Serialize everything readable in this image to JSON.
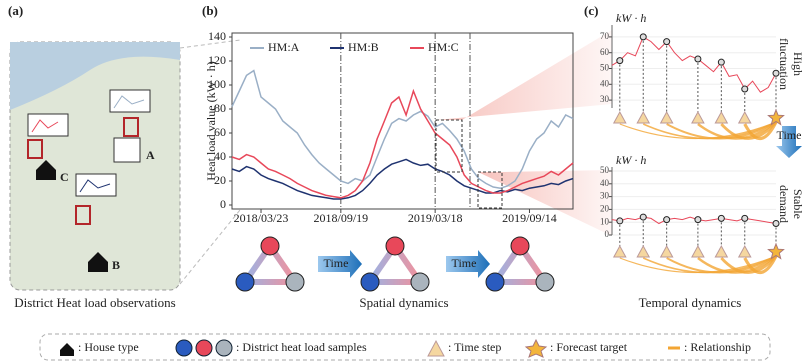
{
  "panels": {
    "a": "(a)",
    "b": "(b)",
    "c": "(c)"
  },
  "captions": {
    "a": "District Heat load observations",
    "b": "Spatial dynamics",
    "c": "Temporal dynamics"
  },
  "map_labels": [
    "A",
    "B",
    "C"
  ],
  "time_label": "Time",
  "side_labels": {
    "top": [
      "High",
      "fluctuation"
    ],
    "bottom": [
      "Stable",
      "demand"
    ]
  },
  "legend": [
    ": House type",
    ": District heat load samples",
    ": Time step",
    ": Forecast target",
    ": Relationship"
  ],
  "chart_data": [
    {
      "type": "line",
      "y_label": "Heat load value (kW · h)",
      "categories": [
        null,
        null,
        null,
        null,
        "2018/03/23",
        null,
        null,
        null,
        null,
        null,
        null,
        null,
        null,
        null,
        null,
        "2018/09/19",
        null,
        null,
        null,
        null,
        null,
        null,
        null,
        null,
        null,
        null,
        null,
        null,
        "2019/03/18",
        null,
        null,
        null,
        null,
        null,
        null,
        null,
        null,
        null,
        null,
        null,
        null,
        "2019/09/14",
        null,
        null,
        null,
        null,
        null,
        null
      ],
      "series": [
        {
          "name": "HM:A",
          "color": "#9aafc6",
          "values": [
            82,
            95,
            108,
            112,
            90,
            85,
            80,
            70,
            65,
            60,
            50,
            42,
            35,
            30,
            25,
            20,
            18,
            22,
            20,
            25,
            40,
            55,
            68,
            72,
            70,
            75,
            78,
            74,
            65,
            68,
            62,
            55,
            45,
            30,
            22,
            18,
            15,
            14,
            16,
            20,
            30,
            45,
            55,
            60,
            70,
            65,
            75,
            72
          ]
        },
        {
          "name": "HM:B",
          "color": "#1f3370",
          "values": [
            30,
            28,
            32,
            30,
            25,
            22,
            20,
            18,
            15,
            12,
            10,
            8,
            7,
            6,
            5,
            5,
            6,
            8,
            12,
            18,
            25,
            30,
            34,
            36,
            38,
            35,
            33,
            34,
            30,
            28,
            25,
            20,
            16,
            14,
            12,
            10,
            10,
            12,
            11,
            13,
            12,
            14,
            15,
            16,
            18,
            17,
            20,
            22
          ]
        },
        {
          "name": "HM:C",
          "color": "#e8485a",
          "values": [
            40,
            38,
            42,
            40,
            35,
            30,
            28,
            25,
            22,
            18,
            15,
            12,
            10,
            8,
            7,
            6,
            8,
            12,
            20,
            35,
            55,
            70,
            85,
            90,
            75,
            95,
            80,
            70,
            60,
            55,
            50,
            40,
            25,
            18,
            15,
            12,
            10,
            10,
            12,
            15,
            18,
            20,
            22,
            24,
            28,
            25,
            30,
            35
          ]
        }
      ],
      "ylim": [
        0,
        140
      ],
      "yticks": [
        0,
        20,
        40,
        60,
        80,
        100,
        120,
        140
      ]
    },
    {
      "type": "line",
      "y_label": "kW · h",
      "color": "#e8485a",
      "values": [
        52,
        55,
        60,
        58,
        70,
        67,
        62,
        67,
        60,
        55,
        58,
        56,
        52,
        48,
        54,
        45,
        46,
        37,
        42,
        35,
        38,
        47
      ],
      "marker_indices": [
        1,
        4,
        7,
        11,
        14,
        17,
        21
      ],
      "ylim": [
        25,
        75
      ],
      "yticks": [
        30,
        40,
        50,
        60,
        70
      ]
    },
    {
      "type": "line",
      "y_label": "kW · h",
      "color": "#e8485a",
      "values": [
        12,
        11,
        13,
        12,
        14,
        13,
        9,
        12,
        13,
        12,
        14,
        12,
        11,
        12,
        13,
        12,
        11,
        13,
        12,
        11,
        10,
        9
      ],
      "marker_indices": [
        1,
        4,
        7,
        11,
        14,
        17,
        21
      ],
      "ylim": [
        0,
        50
      ],
      "yticks": [
        0,
        10,
        20,
        30,
        40,
        50
      ]
    }
  ]
}
